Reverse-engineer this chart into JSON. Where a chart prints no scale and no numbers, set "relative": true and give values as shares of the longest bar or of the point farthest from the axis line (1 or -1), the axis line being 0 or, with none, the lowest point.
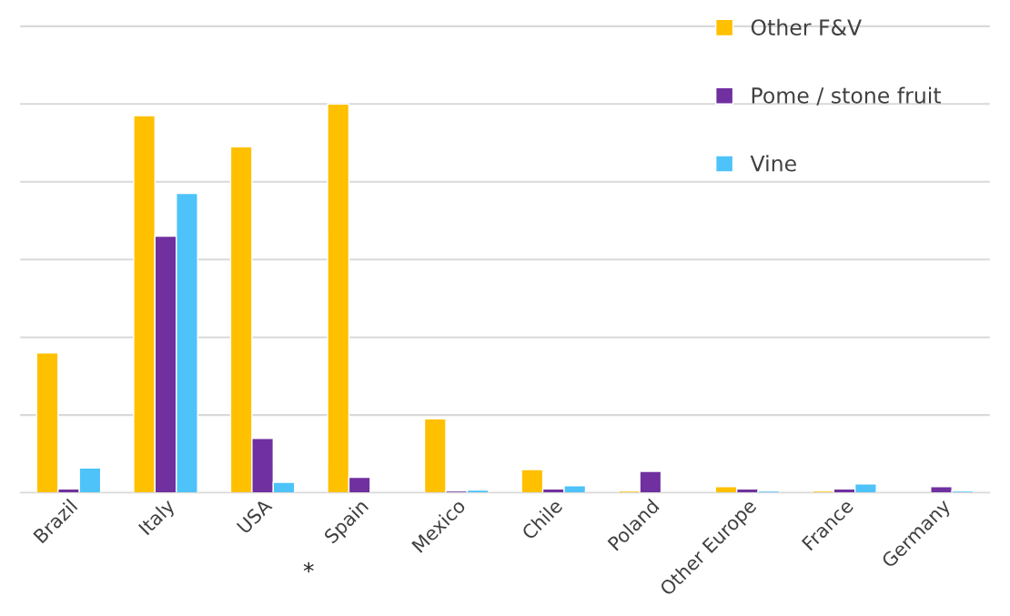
{
  "chart_data": {
    "type": "bar",
    "relative": true,
    "categories": [
      "Brazil",
      "Italy",
      "USA",
      "Spain",
      "Mexico",
      "Chile",
      "Poland",
      "Other Europe",
      "France",
      "Germany"
    ],
    "series": [
      {
        "name": "Other F&V",
        "color": "#ffc000",
        "values": [
          0.36,
          0.97,
          0.89,
          1,
          0.19,
          0.06,
          0.005,
          0.016,
          0.005,
          null
        ]
      },
      {
        "name": "Pome / stone fruit",
        "color": "#7030a0",
        "values": [
          0.01,
          0.66,
          0.14,
          0.04,
          0.005,
          0.01,
          0.055,
          0.01,
          0.01,
          0.016
        ]
      },
      {
        "name": "Vine",
        "color": "#4dc3fa",
        "values": [
          0.064,
          0.77,
          0.027,
          null,
          0.007,
          0.018,
          null,
          0.005,
          0.023,
          0.005
        ]
      }
    ],
    "annotations": [
      "*"
    ],
    "grid": "y",
    "legend": "top right"
  }
}
